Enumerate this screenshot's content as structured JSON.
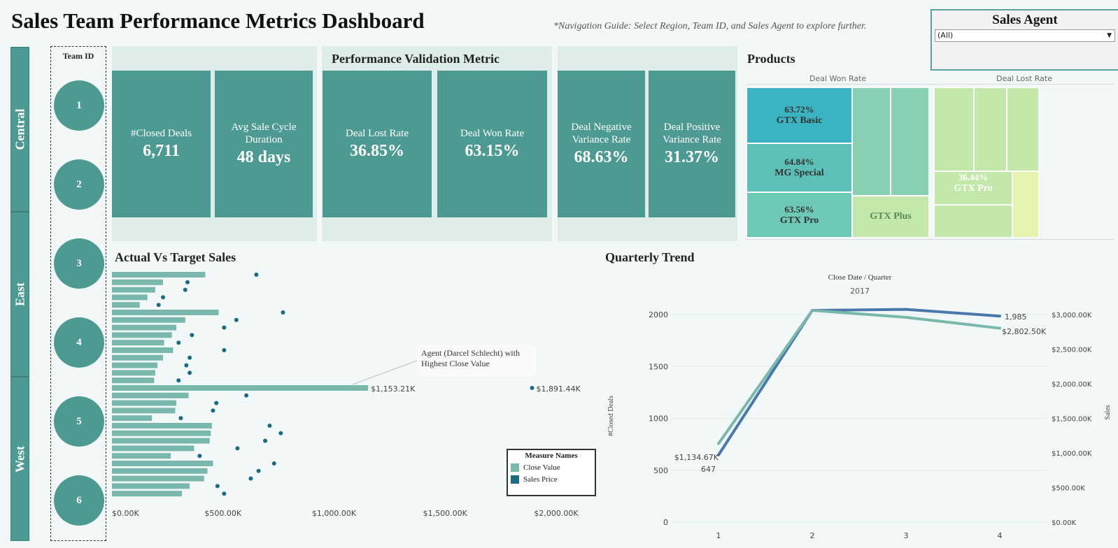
{
  "header": {
    "title": "Sales Team Performance Metrics Dashboard",
    "nav_guide": "*Navigation Guide: Select Region, Team ID, and Sales Agent to explore further."
  },
  "filter": {
    "title": "Sales Agent",
    "selected": "(All)"
  },
  "regions": [
    "Central",
    "East",
    "West"
  ],
  "teams": {
    "header": "Team ID",
    "ids": [
      "1",
      "2",
      "3",
      "4",
      "5",
      "6"
    ]
  },
  "kpis": {
    "closed_deals": {
      "label": "#Closed Deals",
      "value": "6,711"
    },
    "avg_cycle": {
      "label": "Avg Sale Cycle Duration",
      "value": "48 days"
    },
    "validation_title": "Performance Validation Metric",
    "lost_rate": {
      "label": "Deal Lost Rate",
      "value": "36.85%"
    },
    "won_rate": {
      "label": "Deal Won Rate",
      "value": "63.15%"
    },
    "neg_var": {
      "label": "Deal Negative Variance Rate",
      "value": "68.63%"
    },
    "pos_var": {
      "label": "Deal Positive Variance Rate",
      "value": "31.37%"
    }
  },
  "products": {
    "title": "Products",
    "won_header": "Deal Won Rate",
    "lost_header": "Deal Lost Rate",
    "won_tiles": [
      {
        "pct": "63.72%",
        "name": "GTX Basic",
        "color": "#3bb3c0"
      },
      {
        "pct": "64.84%",
        "name": "MG Special",
        "color": "#5cc0b8"
      },
      {
        "pct": "63.56%",
        "name": "GTX Pro",
        "color": "#6dc9b6"
      },
      {
        "pct": "",
        "name": "GTX Plus",
        "color": "#c3e8a9"
      }
    ],
    "lost_tiles": [
      {
        "pct": "36.44%",
        "name": "GTX Pro",
        "color": "#c3e8a9"
      }
    ],
    "colors": {
      "mint": "#88d1b3",
      "light_green": "#c3e8a9",
      "pale_yellow": "#e5f5b0"
    }
  },
  "bar_chart": {
    "title": "Actual Vs Target Sales",
    "legend_title": "Measure Names",
    "legend_items": [
      {
        "name": "Close Value",
        "color": "#7ab8ae"
      },
      {
        "name": "Sales Price",
        "color": "#1c6a80"
      }
    ],
    "annotation": "Agent (Darcel Schlecht) with Highest Close Value",
    "max_close_label": "$1,153.21K",
    "max_price_label": "$1,891.44K"
  },
  "trend": {
    "title": "Quarterly Trend",
    "header": "Close Date / Quarter",
    "year": "2017",
    "left_axis_label": "#Closed Deals",
    "right_axis_label": "Sales",
    "start_deals_label": "647",
    "end_deals_label": "1,985",
    "start_sales_label": "$1,134.67K",
    "end_sales_label": "$2,802.50K"
  },
  "chart_data": [
    {
      "type": "bar",
      "title": "Actual Vs Target Sales",
      "xlim": [
        0,
        2000
      ],
      "x_ticks": [
        "$0.00K",
        "$500.00K",
        "$1,000.00K",
        "$1,500.00K",
        "$2,000.00K"
      ],
      "series": [
        {
          "name": "Close Value",
          "values": [
            420,
            230,
            195,
            160,
            125,
            480,
            330,
            290,
            270,
            235,
            275,
            230,
            205,
            195,
            190,
            1153.21,
            345,
            290,
            285,
            180,
            450,
            445,
            440,
            370,
            265,
            455,
            430,
            415,
            350,
            315
          ]
        },
        {
          "name": "Sales Price",
          "values": [
            650,
            340,
            330,
            230,
            210,
            770,
            560,
            505,
            360,
            300,
            505,
            350,
            335,
            350,
            300,
            1891.44,
            605,
            470,
            455,
            310,
            710,
            760,
            690,
            565,
            395,
            730,
            660,
            625,
            475,
            505
          ]
        }
      ]
    },
    {
      "type": "line",
      "title": "Quarterly Trend",
      "x": [
        1,
        2,
        3,
        4
      ],
      "ylim_left": [
        0,
        2200
      ],
      "ylim_right": [
        0,
        3300
      ],
      "left_ticks": [
        "0",
        "500",
        "1000",
        "1500",
        "2000"
      ],
      "right_ticks": [
        "$0.00K",
        "$500.00K",
        "$1,000.00K",
        "$1,500.00K",
        "$2,000.00K",
        "$2,500.00K",
        "$3,000.00K"
      ],
      "series": [
        {
          "name": "#Closed Deals",
          "axis": "left",
          "color": "#4a78a8",
          "values": [
            647,
            2040,
            2050,
            1985
          ]
        },
        {
          "name": "Sales",
          "axis": "right",
          "color": "#7ab8ae",
          "values": [
            1134.67,
            3060,
            2960,
            2802.5
          ]
        }
      ]
    }
  ]
}
